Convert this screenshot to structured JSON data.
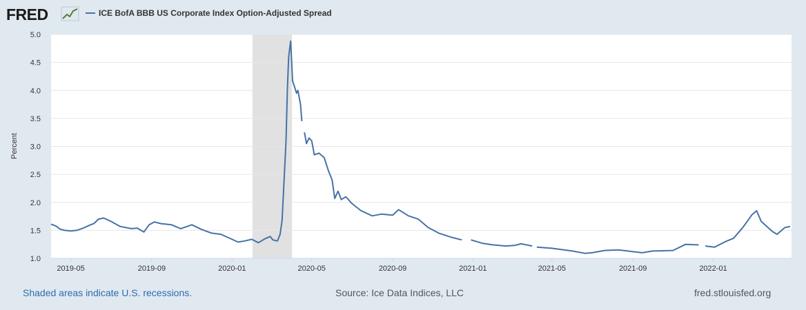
{
  "header": {
    "logo_text": "FRED",
    "legend_label": "ICE BofA BBB US Corporate Index Option-Adjusted Spread"
  },
  "footer": {
    "recession_note": "Shaded areas indicate U.S. recessions.",
    "source": "Source: Ice Data Indices, LLC",
    "url": "fred.stlouisfed.org"
  },
  "colors": {
    "series": "#4572a7",
    "recession_band": "#e1e1e1",
    "page_background": "#e1e9f0",
    "plot_background": "#ffffff",
    "gridline": "#e6e6e6"
  },
  "chart_data": {
    "type": "line",
    "title": "",
    "xlabel": "",
    "ylabel": "Percent",
    "ylim": [
      1.0,
      5.0
    ],
    "yticks": [
      "1.0",
      "1.5",
      "2.0",
      "2.5",
      "3.0",
      "3.5",
      "4.0",
      "4.5",
      "5.0"
    ],
    "xlim": [
      "2019-04-01",
      "2022-04-30"
    ],
    "xticks": [
      {
        "date": "2019-05-01",
        "label": "2019-05"
      },
      {
        "date": "2019-09-01",
        "label": "2019-09"
      },
      {
        "date": "2020-01-01",
        "label": "2020-01"
      },
      {
        "date": "2020-05-01",
        "label": "2020-05"
      },
      {
        "date": "2020-09-01",
        "label": "2020-09"
      },
      {
        "date": "2021-01-01",
        "label": "2021-01"
      },
      {
        "date": "2021-05-01",
        "label": "2021-05"
      },
      {
        "date": "2021-09-01",
        "label": "2021-09"
      },
      {
        "date": "2022-01-01",
        "label": "2022-01"
      }
    ],
    "grid": true,
    "legend": "top-left",
    "recessions": [
      {
        "start": "2020-02-01",
        "end": "2020-04-01"
      }
    ],
    "series": [
      {
        "name": "ICE BofA BBB US Corporate Index Option-Adjusted Spread",
        "points": [
          [
            "2019-04-01",
            1.61
          ],
          [
            "2019-04-08",
            1.58
          ],
          [
            "2019-04-15",
            1.52
          ],
          [
            "2019-04-22",
            1.5
          ],
          [
            "2019-05-01",
            1.49
          ],
          [
            "2019-05-10",
            1.5
          ],
          [
            "2019-05-20",
            1.54
          ],
          [
            "2019-05-31",
            1.6
          ],
          [
            "2019-06-05",
            1.62
          ],
          [
            "2019-06-12",
            1.7
          ],
          [
            "2019-06-20",
            1.72
          ],
          [
            "2019-07-01",
            1.66
          ],
          [
            "2019-07-15",
            1.57
          ],
          [
            "2019-08-01",
            1.53
          ],
          [
            "2019-08-10",
            1.54
          ],
          [
            "2019-08-20",
            1.47
          ],
          [
            "2019-08-28",
            1.6
          ],
          [
            "2019-09-05",
            1.65
          ],
          [
            "2019-09-15",
            1.62
          ],
          [
            "2019-10-01",
            1.6
          ],
          [
            "2019-10-15",
            1.53
          ],
          [
            "2019-11-01",
            1.6
          ],
          [
            "2019-11-15",
            1.52
          ],
          [
            "2019-12-01",
            1.45
          ],
          [
            "2019-12-15",
            1.43
          ],
          [
            "2020-01-01",
            1.34
          ],
          [
            "2020-01-10",
            1.29
          ],
          [
            "2020-01-20",
            1.31
          ],
          [
            "2020-01-31",
            1.34
          ],
          [
            "2020-02-10",
            1.28
          ],
          [
            "2020-02-20",
            1.35
          ],
          [
            "2020-02-28",
            1.39
          ],
          [
            "2020-03-03",
            1.33
          ],
          [
            "2020-03-10",
            1.31
          ],
          [
            "2020-03-14",
            1.43
          ],
          [
            "2020-03-17",
            1.68
          ],
          [
            "2020-03-20",
            2.38
          ],
          [
            "2020-03-23",
            3.1
          ],
          [
            "2020-03-25",
            4.0
          ],
          [
            "2020-03-27",
            4.6
          ],
          [
            "2020-03-30",
            4.88
          ],
          [
            "2020-04-02",
            4.17
          ],
          [
            "2020-04-08",
            3.95
          ],
          [
            "2020-04-10",
            4.0
          ],
          [
            "2020-04-14",
            3.75
          ],
          [
            "2020-04-16",
            3.45
          ],
          null,
          [
            "2020-04-20",
            3.25
          ],
          [
            "2020-04-23",
            3.05
          ],
          [
            "2020-04-27",
            3.15
          ],
          [
            "2020-05-01",
            3.1
          ],
          [
            "2020-05-05",
            2.85
          ],
          [
            "2020-05-12",
            2.88
          ],
          [
            "2020-05-20",
            2.8
          ],
          [
            "2020-05-26",
            2.58
          ],
          [
            "2020-06-01",
            2.4
          ],
          [
            "2020-06-05",
            2.07
          ],
          [
            "2020-06-10",
            2.2
          ],
          [
            "2020-06-15",
            2.05
          ],
          [
            "2020-06-22",
            2.1
          ],
          [
            "2020-07-01",
            1.98
          ],
          [
            "2020-07-15",
            1.85
          ],
          [
            "2020-08-01",
            1.76
          ],
          [
            "2020-08-15",
            1.79
          ],
          [
            "2020-09-01",
            1.77
          ],
          [
            "2020-09-10",
            1.87
          ],
          [
            "2020-09-25",
            1.76
          ],
          [
            "2020-10-10",
            1.7
          ],
          [
            "2020-10-25",
            1.55
          ],
          [
            "2020-11-10",
            1.45
          ],
          [
            "2020-12-01",
            1.37
          ],
          [
            "2020-12-15",
            1.33
          ],
          null,
          [
            "2020-12-29",
            1.33
          ],
          [
            "2021-01-15",
            1.27
          ],
          [
            "2021-02-01",
            1.24
          ],
          [
            "2021-02-20",
            1.22
          ],
          [
            "2021-03-05",
            1.23
          ],
          [
            "2021-03-15",
            1.26
          ],
          [
            "2021-04-01",
            1.22
          ],
          null,
          [
            "2021-04-08",
            1.2
          ],
          [
            "2021-05-01",
            1.18
          ],
          [
            "2021-06-01",
            1.13
          ],
          [
            "2021-06-20",
            1.09
          ],
          [
            "2021-07-01",
            1.1
          ],
          [
            "2021-07-20",
            1.14
          ],
          [
            "2021-08-10",
            1.15
          ],
          [
            "2021-09-01",
            1.12
          ],
          [
            "2021-09-15",
            1.1
          ],
          [
            "2021-10-01",
            1.13
          ],
          [
            "2021-11-01",
            1.14
          ],
          [
            "2021-11-20",
            1.25
          ],
          [
            "2021-12-10",
            1.24
          ],
          null,
          [
            "2021-12-20",
            1.22
          ],
          [
            "2022-01-03",
            1.2
          ],
          [
            "2022-01-20",
            1.3
          ],
          [
            "2022-02-01",
            1.36
          ],
          [
            "2022-02-15",
            1.55
          ],
          [
            "2022-03-01",
            1.78
          ],
          [
            "2022-03-08",
            1.85
          ],
          [
            "2022-03-15",
            1.66
          ],
          [
            "2022-04-01",
            1.48
          ],
          [
            "2022-04-08",
            1.43
          ],
          [
            "2022-04-20",
            1.55
          ],
          [
            "2022-04-28",
            1.57
          ]
        ]
      }
    ]
  }
}
